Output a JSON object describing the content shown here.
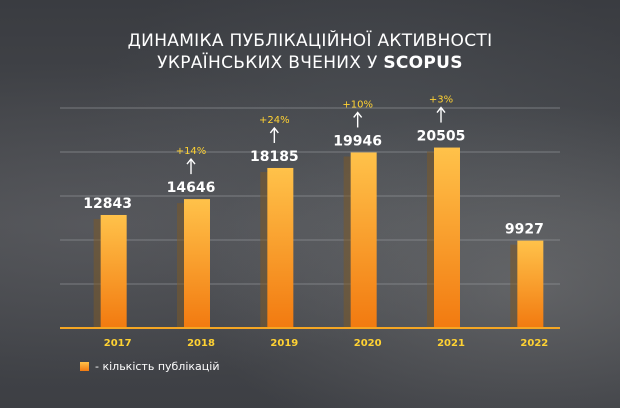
{
  "title_line1": "ДИНАМІКА ПУБЛІКАЦІЙНОЇ АКТИВНОСТІ",
  "title_line2_prefix": "УКРАЇНСЬКИХ ВЧЕНИХ У",
  "title_line2_bold": "SCOPUS",
  "legend_label": "- кількість публікацій",
  "colors": {
    "bar_top": "#ffc24a",
    "bar_bottom": "#f27a10",
    "growth_label": "#ffd233",
    "year_label": "#ffd233",
    "value_label": "#ffffff",
    "gridline": "#9a9ca0",
    "baseline": "#f5a623"
  },
  "chart_data": {
    "type": "bar",
    "categories": [
      "2017",
      "2018",
      "2019",
      "2020",
      "2021",
      "2022"
    ],
    "series": [
      {
        "name": "кількість публікацій",
        "values": [
          12843,
          14646,
          18185,
          19946,
          20505,
          9927
        ]
      }
    ],
    "value_labels": [
      "12843",
      "14646",
      "18185",
      "19946",
      "20505",
      "9927"
    ],
    "growth_labels": [
      "",
      "+14%",
      "+24%",
      "+10%",
      "+3%",
      ""
    ],
    "ylim": [
      0,
      25000
    ],
    "grid": true,
    "legend_position": "bottom-left"
  }
}
